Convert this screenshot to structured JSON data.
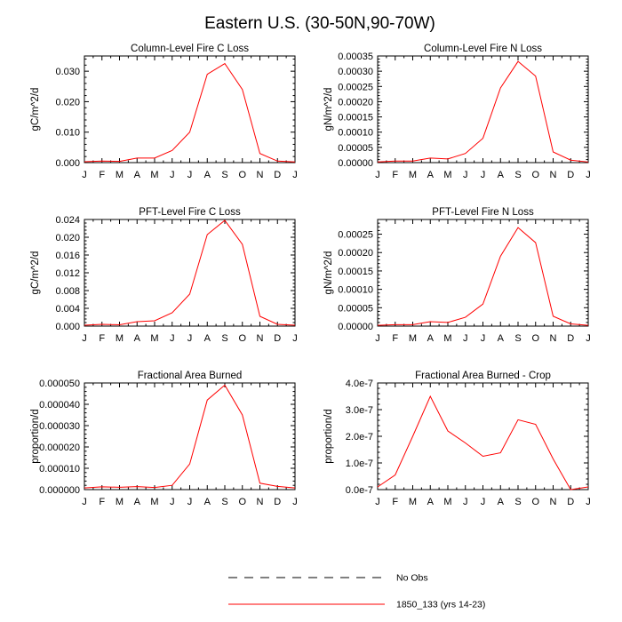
{
  "title": "Eastern U.S. (30-50N,90-70W)",
  "legend": {
    "items": [
      {
        "label": "No Obs",
        "color": "#000000",
        "dash": true
      },
      {
        "label": "1850_133 (yrs 14-23)",
        "color": "#ff0000",
        "dash": false
      }
    ]
  },
  "chart_data": [
    {
      "type": "line",
      "title": "Column-Level Fire C Loss",
      "ylabel": "gC/m^2/d",
      "x": [
        "J",
        "F",
        "M",
        "A",
        "M",
        "J",
        "J",
        "A",
        "S",
        "O",
        "N",
        "D",
        "J"
      ],
      "ylim": [
        0,
        0.035
      ],
      "yticks": [
        "0.000",
        "0.010",
        "0.020",
        "0.030"
      ],
      "ytick_values": [
        0,
        0.01,
        0.02,
        0.03
      ],
      "yminor": 0.002,
      "series": [
        {
          "name": "1850_133 (yrs 14-23)",
          "color": "#ff0000",
          "values": [
            0.0003,
            0.0005,
            0.0004,
            0.0015,
            0.0015,
            0.004,
            0.01,
            0.029,
            0.0325,
            0.024,
            0.003,
            0.0005,
            0.0002
          ]
        }
      ]
    },
    {
      "type": "line",
      "title": "Column-Level Fire N Loss",
      "ylabel": "gN/m^2/d",
      "x": [
        "J",
        "F",
        "M",
        "A",
        "M",
        "J",
        "J",
        "A",
        "S",
        "O",
        "N",
        "D",
        "J"
      ],
      "ylim": [
        0,
        0.00035
      ],
      "yticks": [
        "0.00000",
        "0.00005",
        "0.00010",
        "0.00015",
        "0.00020",
        "0.00025",
        "0.00030",
        "0.00035"
      ],
      "ytick_values": [
        0,
        5e-05,
        0.0001,
        0.00015,
        0.0002,
        0.00025,
        0.0003,
        0.00035
      ],
      "yminor": 1e-05,
      "series": [
        {
          "name": "1850_133 (yrs 14-23)",
          "color": "#ff0000",
          "values": [
            2e-06,
            5e-06,
            5e-06,
            1.5e-05,
            1.2e-05,
            3e-05,
            8e-05,
            0.000245,
            0.000332,
            0.000284,
            3.5e-05,
            8e-06,
            2e-06
          ]
        }
      ]
    },
    {
      "type": "line",
      "title": "PFT-Level Fire C Loss",
      "ylabel": "gC/m^2/d",
      "x": [
        "J",
        "F",
        "M",
        "A",
        "M",
        "J",
        "J",
        "A",
        "S",
        "O",
        "N",
        "D",
        "J"
      ],
      "ylim": [
        0,
        0.024
      ],
      "yticks": [
        "0.000",
        "0.004",
        "0.008",
        "0.012",
        "0.016",
        "0.020",
        "0.024"
      ],
      "ytick_values": [
        0,
        0.004,
        0.008,
        0.012,
        0.016,
        0.02,
        0.024
      ],
      "yminor": 0.0008,
      "series": [
        {
          "name": "1850_133 (yrs 14-23)",
          "color": "#ff0000",
          "values": [
            0.0002,
            0.0004,
            0.0003,
            0.001,
            0.0012,
            0.003,
            0.0072,
            0.0206,
            0.0238,
            0.0184,
            0.0022,
            0.0004,
            0.0002
          ]
        }
      ]
    },
    {
      "type": "line",
      "title": "PFT-Level Fire N Loss",
      "ylabel": "gN/m^2/d",
      "x": [
        "J",
        "F",
        "M",
        "A",
        "M",
        "J",
        "J",
        "A",
        "S",
        "O",
        "N",
        "D",
        "J"
      ],
      "ylim": [
        0,
        0.00029
      ],
      "yticks": [
        "0.00000",
        "0.00005",
        "0.00010",
        "0.00015",
        "0.00020",
        "0.00025"
      ],
      "ytick_values": [
        0,
        5e-05,
        0.0001,
        0.00015,
        0.0002,
        0.00025
      ],
      "yminor": 1e-05,
      "series": [
        {
          "name": "1850_133 (yrs 14-23)",
          "color": "#ff0000",
          "values": [
            2e-06,
            4e-06,
            4e-06,
            1.2e-05,
            1e-05,
            2.4e-05,
            6e-05,
            0.00019,
            0.000268,
            0.000227,
            2.7e-05,
            6e-06,
            2e-06
          ]
        }
      ]
    },
    {
      "type": "line",
      "title": "Fractional Area Burned",
      "ylabel": "proportion/d",
      "x": [
        "J",
        "F",
        "M",
        "A",
        "M",
        "J",
        "J",
        "A",
        "S",
        "O",
        "N",
        "D",
        "J"
      ],
      "ylim": [
        0,
        5e-05
      ],
      "yticks": [
        "0.000000",
        "0.000010",
        "0.000020",
        "0.000030",
        "0.000040",
        "0.000050"
      ],
      "ytick_values": [
        0,
        1e-05,
        2e-05,
        3e-05,
        4e-05,
        5e-05
      ],
      "yminor": 2e-06,
      "series": [
        {
          "name": "1850_133 (yrs 14-23)",
          "color": "#ff0000",
          "values": [
            8e-07,
            1.3e-06,
            1.1e-06,
            1.4e-06,
            1e-06,
            2e-06,
            1.2e-05,
            4.2e-05,
            4.9e-05,
            3.5e-05,
            3e-06,
            1.5e-06,
            8e-07
          ]
        }
      ]
    },
    {
      "type": "line",
      "title": "Fractional Area Burned - Crop",
      "ylabel": "proportion/d",
      "x": [
        "J",
        "F",
        "M",
        "A",
        "M",
        "J",
        "J",
        "A",
        "S",
        "O",
        "N",
        "D",
        "J"
      ],
      "ylim": [
        0,
        4e-07
      ],
      "yticks": [
        "0.0e-7",
        "1.0e-7",
        "2.0e-7",
        "3.0e-7",
        "4.0e-7"
      ],
      "ytick_values": [
        0,
        1e-07,
        2e-07,
        3e-07,
        4e-07
      ],
      "yminor": 2e-08,
      "series": [
        {
          "name": "1850_133 (yrs 14-23)",
          "color": "#ff0000",
          "values": [
            1e-08,
            5.5e-08,
            2e-07,
            3.5e-07,
            2.2e-07,
            1.75e-07,
            1.25e-07,
            1.38e-07,
            2.62e-07,
            2.45e-07,
            1.15e-07,
            0,
            1e-08
          ]
        }
      ]
    }
  ]
}
